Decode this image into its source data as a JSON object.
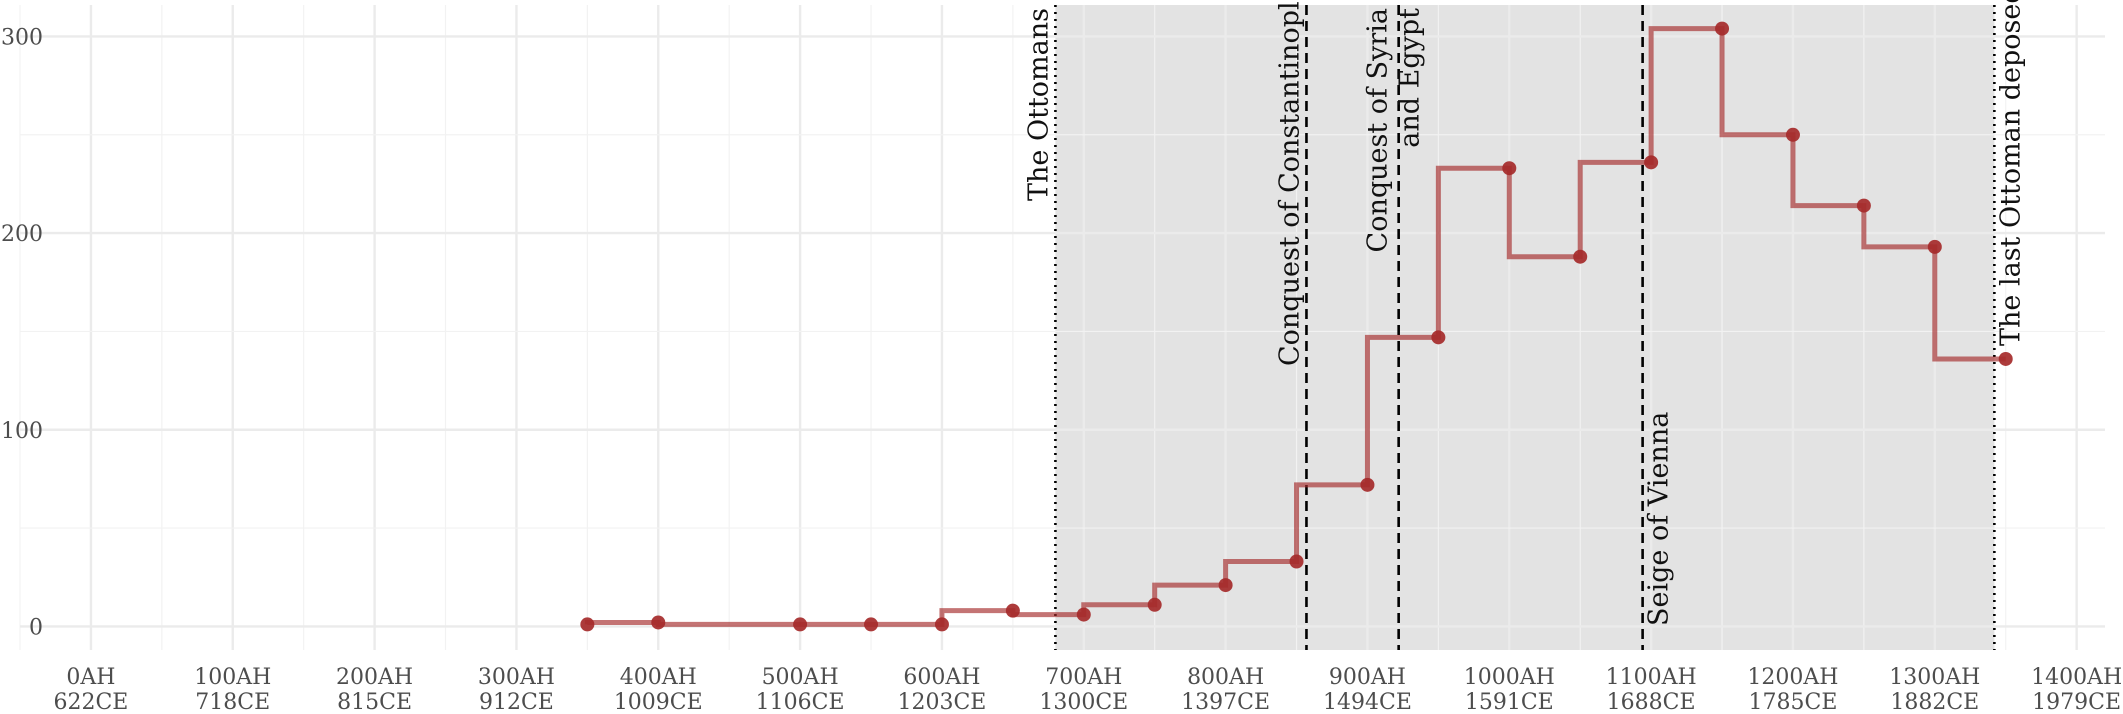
{
  "chart_data": {
    "type": "line",
    "step": true,
    "title": "",
    "xlabel": "",
    "ylabel": "",
    "xlim": [
      -50,
      1420
    ],
    "ylim": [
      -12,
      316
    ],
    "grid": true,
    "x_ticks": [
      {
        "value": 0,
        "line1": "0AH",
        "line2": "622CE"
      },
      {
        "value": 100,
        "line1": "100AH",
        "line2": "718CE"
      },
      {
        "value": 200,
        "line1": "200AH",
        "line2": "815CE"
      },
      {
        "value": 300,
        "line1": "300AH",
        "line2": "912CE"
      },
      {
        "value": 400,
        "line1": "400AH",
        "line2": "1009CE"
      },
      {
        "value": 500,
        "line1": "500AH",
        "line2": "1106CE"
      },
      {
        "value": 600,
        "line1": "600AH",
        "line2": "1203CE"
      },
      {
        "value": 700,
        "line1": "700AH",
        "line2": "1300CE"
      },
      {
        "value": 800,
        "line1": "800AH",
        "line2": "1397CE"
      },
      {
        "value": 900,
        "line1": "900AH",
        "line2": "1494CE"
      },
      {
        "value": 1000,
        "line1": "1000AH",
        "line2": "1591CE"
      },
      {
        "value": 1100,
        "line1": "1100AH",
        "line2": "1688CE"
      },
      {
        "value": 1200,
        "line1": "1200AH",
        "line2": "1785CE"
      },
      {
        "value": 1300,
        "line1": "1300AH",
        "line2": "1882CE"
      },
      {
        "value": 1400,
        "line1": "1400AH",
        "line2": "1979CE"
      }
    ],
    "y_ticks": [
      {
        "value": 0,
        "label": "0"
      },
      {
        "value": 100,
        "label": "100"
      },
      {
        "value": 200,
        "label": "200"
      },
      {
        "value": 300,
        "label": "300"
      }
    ],
    "series": [
      {
        "color": "#a52a2a",
        "points": [
          {
            "x": 350,
            "y": 1
          },
          {
            "x": 400,
            "y": 2
          },
          {
            "x": 500,
            "y": 1
          },
          {
            "x": 550,
            "y": 1
          },
          {
            "x": 600,
            "y": 1
          },
          {
            "x": 650,
            "y": 8
          },
          {
            "x": 700,
            "y": 6
          },
          {
            "x": 750,
            "y": 11
          },
          {
            "x": 800,
            "y": 21
          },
          {
            "x": 850,
            "y": 33
          },
          {
            "x": 900,
            "y": 72
          },
          {
            "x": 950,
            "y": 147
          },
          {
            "x": 1000,
            "y": 233
          },
          {
            "x": 1050,
            "y": 188
          },
          {
            "x": 1100,
            "y": 236
          },
          {
            "x": 1150,
            "y": 304
          },
          {
            "x": 1200,
            "y": 250
          },
          {
            "x": 1250,
            "y": 214
          },
          {
            "x": 1300,
            "y": 193
          },
          {
            "x": 1350,
            "y": 136
          }
        ]
      }
    ],
    "shaded_region": {
      "from": 680,
      "to": 1342,
      "color": "#e3e3e3"
    },
    "events": [
      {
        "x": 680,
        "label": "The Ottomans",
        "style": "dotted"
      },
      {
        "x": 857,
        "label": "Conquest of Constantinople",
        "style": "dashed"
      },
      {
        "x": 922,
        "label": "Conquest of Syria and Egypt",
        "style": "dashed"
      },
      {
        "x": 1094,
        "label": "Seige of Vienna",
        "style": "dashed"
      },
      {
        "x": 1342,
        "label": "The last Ottoman deposed",
        "style": "dotted"
      }
    ]
  }
}
